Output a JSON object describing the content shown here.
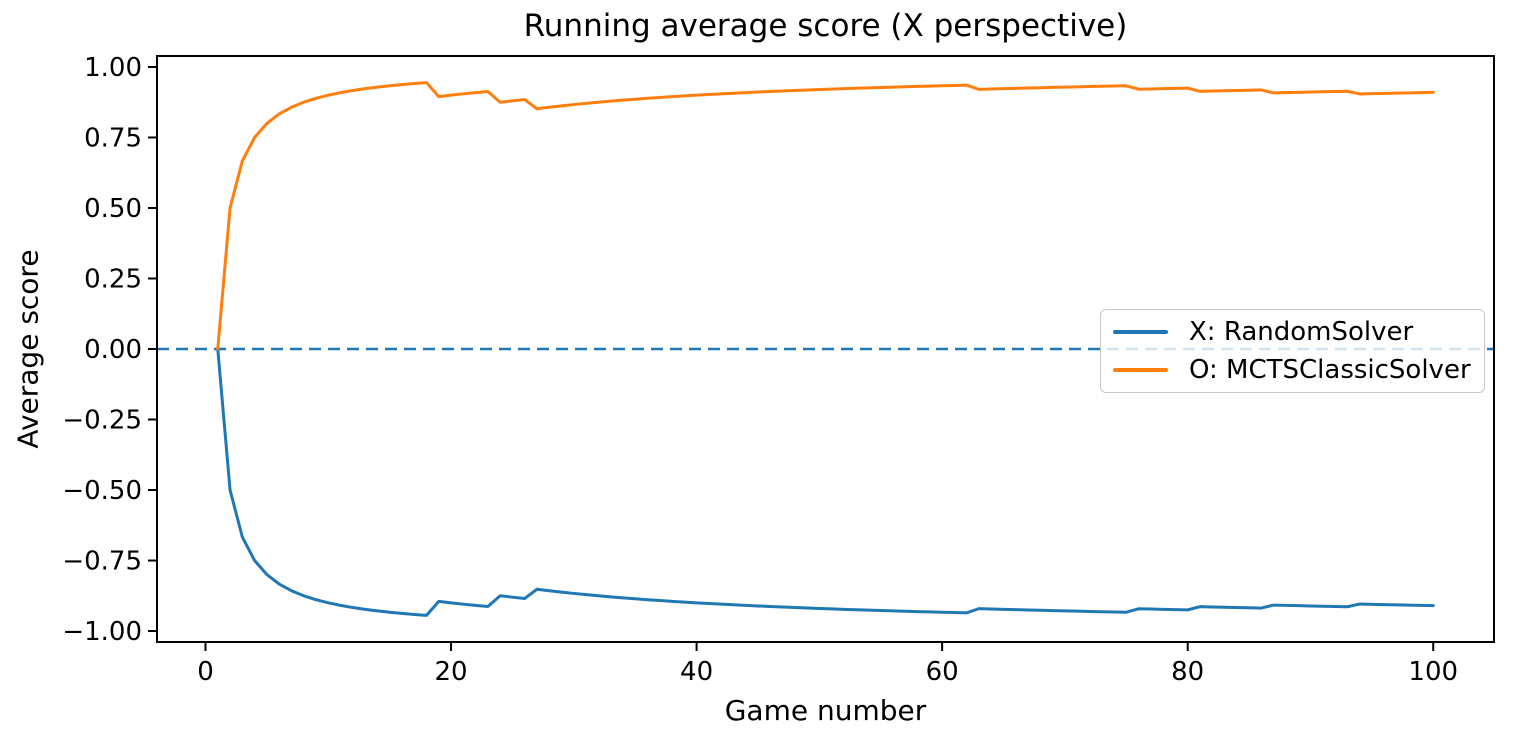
{
  "title": "Running average score (X perspective)",
  "chart_data": {
    "type": "line",
    "title": "Running average score (X perspective)",
    "xlabel": "Game number",
    "ylabel": "Average score",
    "xlim": [
      -3.95,
      104.95
    ],
    "ylim": [
      -1.0389,
      1.0389
    ],
    "grid": false,
    "legend_position": "center right",
    "x_ticks": [
      {
        "v": 0,
        "label": "0"
      },
      {
        "v": 20,
        "label": "20"
      },
      {
        "v": 40,
        "label": "40"
      },
      {
        "v": 60,
        "label": "60"
      },
      {
        "v": 80,
        "label": "80"
      },
      {
        "v": 100,
        "label": "100"
      }
    ],
    "y_ticks": [
      {
        "v": 1.0,
        "label": "1.00"
      },
      {
        "v": 0.75,
        "label": "0.75"
      },
      {
        "v": 0.5,
        "label": "0.50"
      },
      {
        "v": 0.25,
        "label": "0.25"
      },
      {
        "v": 0.0,
        "label": "0.00"
      },
      {
        "v": -0.25,
        "label": "−0.25"
      },
      {
        "v": -0.5,
        "label": "−0.50"
      },
      {
        "v": -0.75,
        "label": "−0.75"
      },
      {
        "v": -1.0,
        "label": "−1.00"
      }
    ],
    "zero_line": {
      "y": 0,
      "style": "dashed",
      "color": "#1f77b4"
    },
    "x": [
      1,
      2,
      3,
      4,
      5,
      6,
      7,
      8,
      9,
      10,
      11,
      12,
      13,
      14,
      15,
      16,
      17,
      18,
      19,
      20,
      21,
      22,
      23,
      24,
      25,
      26,
      27,
      28,
      29,
      30,
      31,
      32,
      33,
      34,
      35,
      36,
      37,
      38,
      39,
      40,
      41,
      42,
      43,
      44,
      45,
      46,
      47,
      48,
      49,
      50,
      51,
      52,
      53,
      54,
      55,
      56,
      57,
      58,
      59,
      60,
      61,
      62,
      63,
      64,
      65,
      66,
      67,
      68,
      69,
      70,
      71,
      72,
      73,
      74,
      75,
      76,
      77,
      78,
      79,
      80,
      81,
      82,
      83,
      84,
      85,
      86,
      87,
      88,
      89,
      90,
      91,
      92,
      93,
      94,
      95,
      96,
      97,
      98,
      99,
      100
    ],
    "series": [
      {
        "name": "X: RandomSolver",
        "color": "#1f77b4",
        "values": [
          0.0,
          -0.5,
          -0.6667,
          -0.75,
          -0.8,
          -0.8333,
          -0.8571,
          -0.875,
          -0.8889,
          -0.9,
          -0.9091,
          -0.9167,
          -0.9231,
          -0.9286,
          -0.9333,
          -0.9375,
          -0.9412,
          -0.9444,
          -0.8947,
          -0.9,
          -0.9048,
          -0.9091,
          -0.913,
          -0.875,
          -0.88,
          -0.8846,
          -0.8519,
          -0.8571,
          -0.8621,
          -0.8667,
          -0.871,
          -0.875,
          -0.8788,
          -0.8824,
          -0.8857,
          -0.8889,
          -0.8919,
          -0.8947,
          -0.8974,
          -0.9,
          -0.9024,
          -0.9048,
          -0.907,
          -0.9091,
          -0.9111,
          -0.913,
          -0.9149,
          -0.9167,
          -0.9184,
          -0.92,
          -0.9216,
          -0.9231,
          -0.9245,
          -0.9259,
          -0.9273,
          -0.9286,
          -0.9298,
          -0.931,
          -0.9322,
          -0.9333,
          -0.9344,
          -0.9355,
          -0.9206,
          -0.9219,
          -0.9231,
          -0.9242,
          -0.9254,
          -0.9265,
          -0.9275,
          -0.9286,
          -0.9296,
          -0.9306,
          -0.9315,
          -0.9324,
          -0.9333,
          -0.9211,
          -0.9221,
          -0.9231,
          -0.9241,
          -0.925,
          -0.9136,
          -0.9146,
          -0.9157,
          -0.9167,
          -0.9176,
          -0.9186,
          -0.908,
          -0.9091,
          -0.9101,
          -0.9111,
          -0.9121,
          -0.913,
          -0.914,
          -0.9043,
          -0.9053,
          -0.9063,
          -0.9072,
          -0.9082,
          -0.9091,
          -0.91
        ]
      },
      {
        "name": "O: MCTSClassicSolver",
        "color": "#ff7f0e",
        "values": [
          0.0,
          0.5,
          0.6667,
          0.75,
          0.8,
          0.8333,
          0.8571,
          0.875,
          0.8889,
          0.9,
          0.9091,
          0.9167,
          0.9231,
          0.9286,
          0.9333,
          0.9375,
          0.9412,
          0.9444,
          0.8947,
          0.9,
          0.9048,
          0.9091,
          0.913,
          0.875,
          0.88,
          0.8846,
          0.8519,
          0.8571,
          0.8621,
          0.8667,
          0.871,
          0.875,
          0.8788,
          0.8824,
          0.8857,
          0.8889,
          0.8919,
          0.8947,
          0.8974,
          0.9,
          0.9024,
          0.9048,
          0.907,
          0.9091,
          0.9111,
          0.913,
          0.9149,
          0.9167,
          0.9184,
          0.92,
          0.9216,
          0.9231,
          0.9245,
          0.9259,
          0.9273,
          0.9286,
          0.9298,
          0.931,
          0.9322,
          0.9333,
          0.9344,
          0.9355,
          0.9206,
          0.9219,
          0.9231,
          0.9242,
          0.9254,
          0.9265,
          0.9275,
          0.9286,
          0.9296,
          0.9306,
          0.9315,
          0.9324,
          0.9333,
          0.9211,
          0.9221,
          0.9231,
          0.9241,
          0.925,
          0.9136,
          0.9146,
          0.9157,
          0.9167,
          0.9176,
          0.9186,
          0.908,
          0.9091,
          0.9101,
          0.9111,
          0.9121,
          0.913,
          0.914,
          0.9043,
          0.9053,
          0.9063,
          0.9072,
          0.9082,
          0.9091,
          0.91
        ]
      }
    ]
  }
}
